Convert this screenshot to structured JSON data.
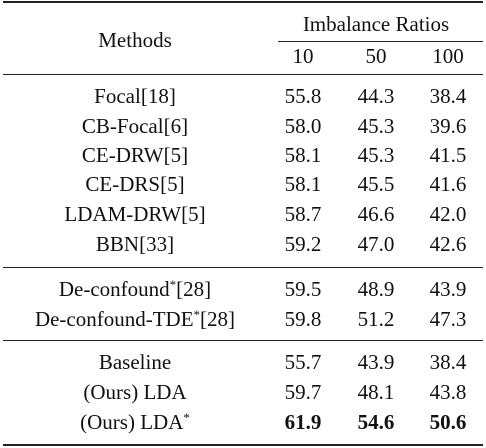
{
  "header": {
    "methods_label": "Methods",
    "group_label": "Imbalance Ratios",
    "ratios": [
      "10",
      "50",
      "100"
    ]
  },
  "groups": [
    {
      "rows": [
        {
          "method": "Focal[18]",
          "sup": "",
          "values": [
            "55.8",
            "44.3",
            "38.4"
          ],
          "bold": false
        },
        {
          "method": "CB-Focal[6]",
          "sup": "",
          "values": [
            "58.0",
            "45.3",
            "39.6"
          ],
          "bold": false
        },
        {
          "method": "CE-DRW[5]",
          "sup": "",
          "values": [
            "58.1",
            "45.3",
            "41.5"
          ],
          "bold": false
        },
        {
          "method": "CE-DRS[5]",
          "sup": "",
          "values": [
            "58.1",
            "45.5",
            "41.6"
          ],
          "bold": false
        },
        {
          "method": "LDAM-DRW[5]",
          "sup": "",
          "values": [
            "58.7",
            "46.6",
            "42.0"
          ],
          "bold": false
        },
        {
          "method": "BBN[33]",
          "sup": "",
          "values": [
            "59.2",
            "47.0",
            "42.6"
          ],
          "bold": false
        }
      ]
    },
    {
      "rows": [
        {
          "method": "De-confound",
          "sup": "*",
          "ref": "[28]",
          "values": [
            "59.5",
            "48.9",
            "43.9"
          ],
          "bold": false
        },
        {
          "method": "De-confound-TDE",
          "sup": "*",
          "ref": "[28]",
          "values": [
            "59.8",
            "51.2",
            "47.3"
          ],
          "bold": false
        }
      ]
    },
    {
      "rows": [
        {
          "method": "Baseline",
          "sup": "",
          "values": [
            "55.7",
            "43.9",
            "38.4"
          ],
          "bold": false
        },
        {
          "method": "(Ours) LDA",
          "sup": "",
          "values": [
            "59.7",
            "48.1",
            "43.8"
          ],
          "bold": false
        },
        {
          "method": "(Ours) LDA",
          "sup": "*",
          "values": [
            "61.9",
            "54.6",
            "50.6"
          ],
          "bold": true
        }
      ]
    }
  ]
}
